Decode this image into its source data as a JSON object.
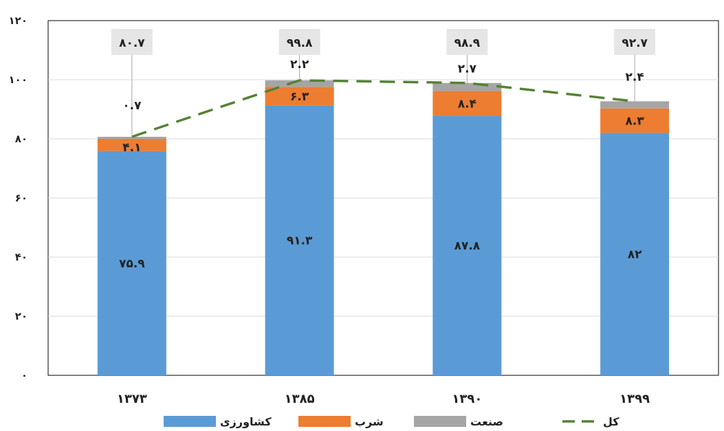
{
  "chart_data": {
    "type": "bar",
    "stacked": true,
    "categories": [
      "۱۳۷۳",
      "۱۳۸۵",
      "۱۳۹۰",
      "۱۳۹۹"
    ],
    "series": [
      {
        "name": "کشاورزی",
        "values": [
          75.9,
          91.3,
          87.8,
          82
        ],
        "labels": [
          "۷۵.۹",
          "۹۱.۳",
          "۸۷.۸",
          "۸۲"
        ],
        "color": "#5b9bd5"
      },
      {
        "name": "شرب",
        "values": [
          4.1,
          6.3,
          8.4,
          8.3
        ],
        "labels": [
          "۴.۱",
          "۶.۳",
          "۸.۴",
          "۸.۳"
        ],
        "color": "#ed7d31"
      },
      {
        "name": "صنعت",
        "values": [
          0.7,
          2.2,
          2.7,
          2.4
        ],
        "labels": [
          "۰.۷",
          "۲.۲",
          "۲.۷",
          "۲.۴"
        ],
        "color": "#a5a5a5"
      }
    ],
    "total": {
      "name": "کل",
      "values": [
        80.7,
        99.8,
        98.9,
        92.7
      ],
      "labels": [
        "۸۰.۷",
        "۹۹.۸",
        "۹۸.۹",
        "۹۲.۷"
      ],
      "color": "#548235",
      "style": "dashed"
    },
    "ylim": [
      0,
      120
    ],
    "yticks": [
      "۰",
      "۲۰",
      "۴۰",
      "۶۰",
      "۸۰",
      "۱۰۰",
      "۱۲۰"
    ],
    "grid": true,
    "legend_position": "bottom",
    "title": "",
    "xlabel": "",
    "ylabel": ""
  }
}
